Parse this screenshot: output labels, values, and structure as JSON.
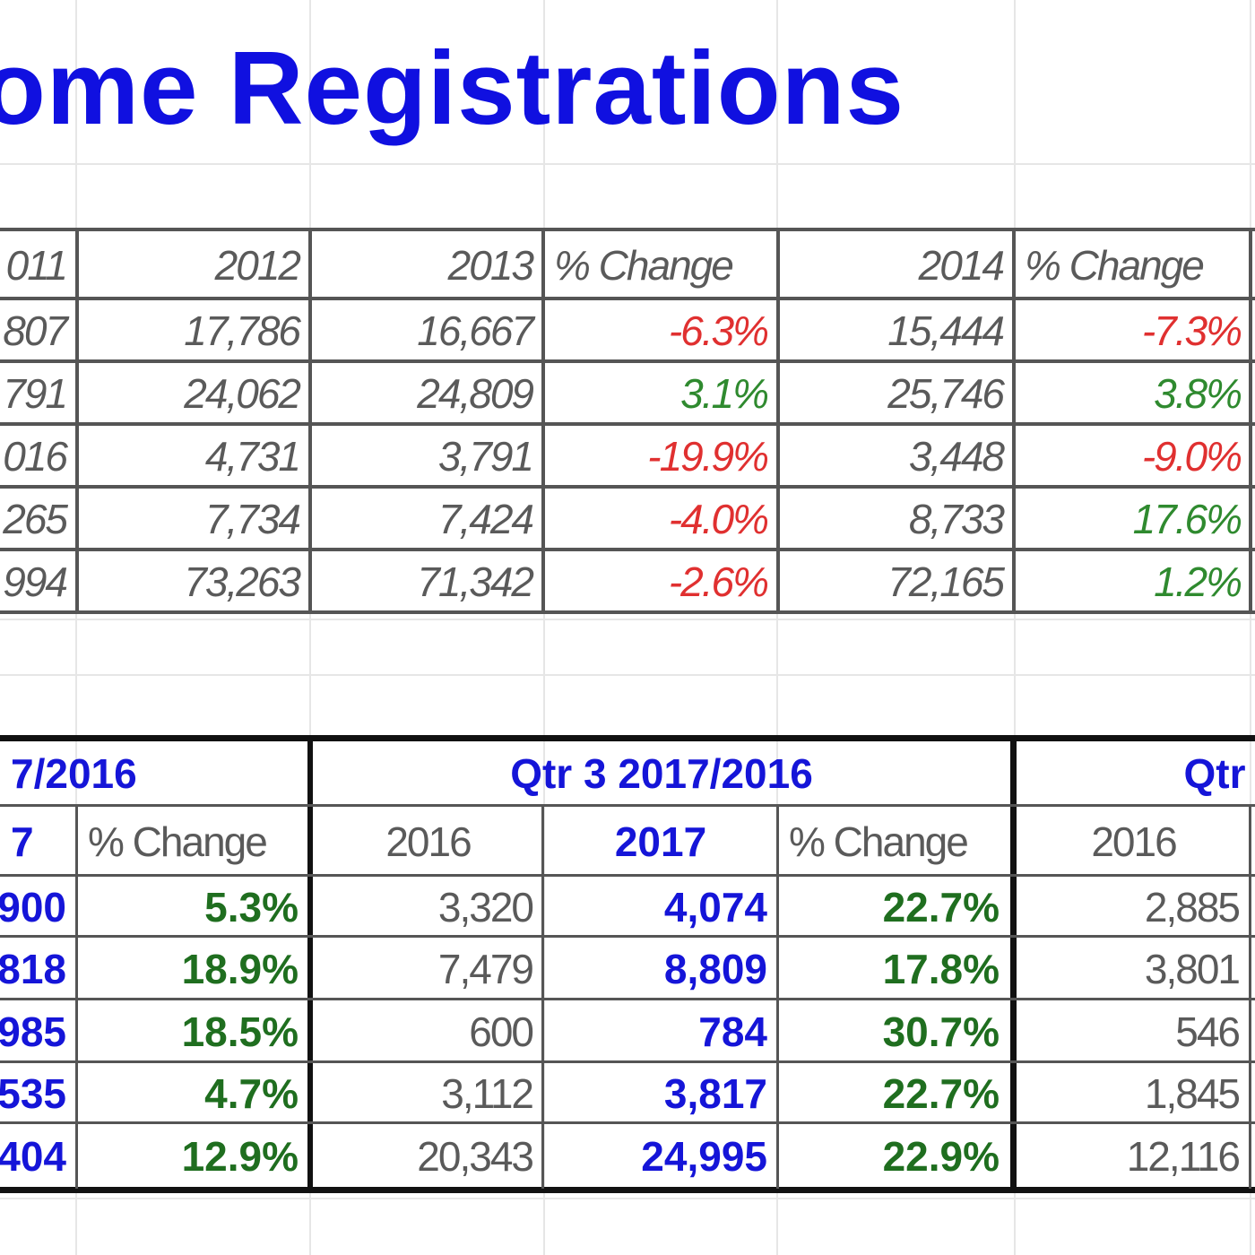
{
  "title": "ome Registrations",
  "table1": {
    "headers": [
      "011",
      "2012",
      "2013",
      "% Change",
      "2014",
      "% Change"
    ],
    "rows": [
      [
        "807",
        "17,786",
        "16,667",
        "-6.3%",
        "15,444",
        "-7.3%"
      ],
      [
        "791",
        "24,062",
        "24,809",
        "3.1%",
        "25,746",
        "3.8%"
      ],
      [
        "016",
        "4,731",
        "3,791",
        "-19.9%",
        "3,448",
        "-9.0%"
      ],
      [
        "265",
        "7,734",
        "7,424",
        "-4.0%",
        "8,733",
        "17.6%"
      ],
      [
        "994",
        "73,263",
        "71,342",
        "-2.6%",
        "72,165",
        "1.2%"
      ]
    ]
  },
  "table2": {
    "group_headers": [
      "7/2016",
      "Qtr 3 2017/2016",
      "Qtr"
    ],
    "headers": [
      "7",
      "% Change",
      "2016",
      "2017",
      "% Change",
      "2016"
    ],
    "rows": [
      [
        "900",
        "5.3%",
        "3,320",
        "4,074",
        "22.7%",
        "2,885"
      ],
      [
        "818",
        "18.9%",
        "7,479",
        "8,809",
        "17.8%",
        "3,801"
      ],
      [
        "985",
        "18.5%",
        "600",
        "784",
        "30.7%",
        "546"
      ],
      [
        "535",
        "4.7%",
        "3,112",
        "3,817",
        "22.7%",
        "1,845"
      ],
      [
        "404",
        "12.9%",
        "20,343",
        "24,995",
        "22.9%",
        "12,116"
      ]
    ]
  },
  "colors": {
    "title": "#1010e0",
    "negative": "#e03030",
    "positive": "#2f8a2f",
    "highlight": "#1515d8"
  }
}
